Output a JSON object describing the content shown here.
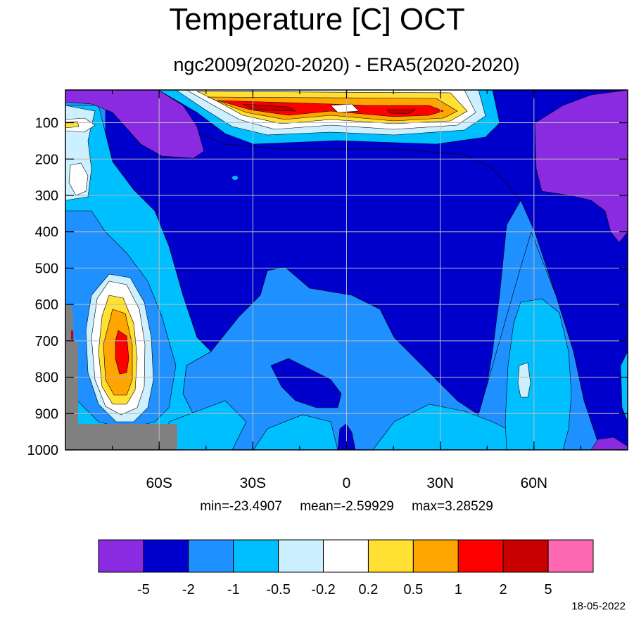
{
  "title": "Temperature [C] OCT",
  "subtitle": "ngc2009(2020-2020) - ERA5(2020-2020)",
  "stats": {
    "min": "min=-23.4907",
    "mean": "mean=-2.59929",
    "max": "max=3.28529"
  },
  "date": "18-05-2022",
  "chart_data": {
    "type": "heatmap",
    "title": "Temperature [C] OCT",
    "subtitle": "ngc2009(2020-2020) - ERA5(2020-2020)",
    "x_ticks": [
      {
        "value": -60,
        "label": "60S"
      },
      {
        "value": -30,
        "label": "30S"
      },
      {
        "value": 0,
        "label": "0"
      },
      {
        "value": 30,
        "label": "30N"
      },
      {
        "value": 60,
        "label": "60N"
      }
    ],
    "y_ticks": [
      100,
      200,
      300,
      400,
      500,
      600,
      700,
      800,
      900,
      1000
    ],
    "xlim": [
      -90,
      90
    ],
    "ylim": [
      1000,
      10
    ],
    "grid": true,
    "colorbar": {
      "levels": [
        "-5",
        "-2",
        "-1",
        "-0.5",
        "-0.2",
        "0.2",
        "0.5",
        "1",
        "2",
        "5"
      ],
      "colors": [
        "#8A2BE2",
        "#0000CD",
        "#1E90FF",
        "#00BFFF",
        "#CCF0FF",
        "#FFFFFF",
        "#FFE033",
        "#FFA500",
        "#FF0000",
        "#C80000",
        "#FF69B4"
      ]
    },
    "missing_color": "#808080"
  }
}
